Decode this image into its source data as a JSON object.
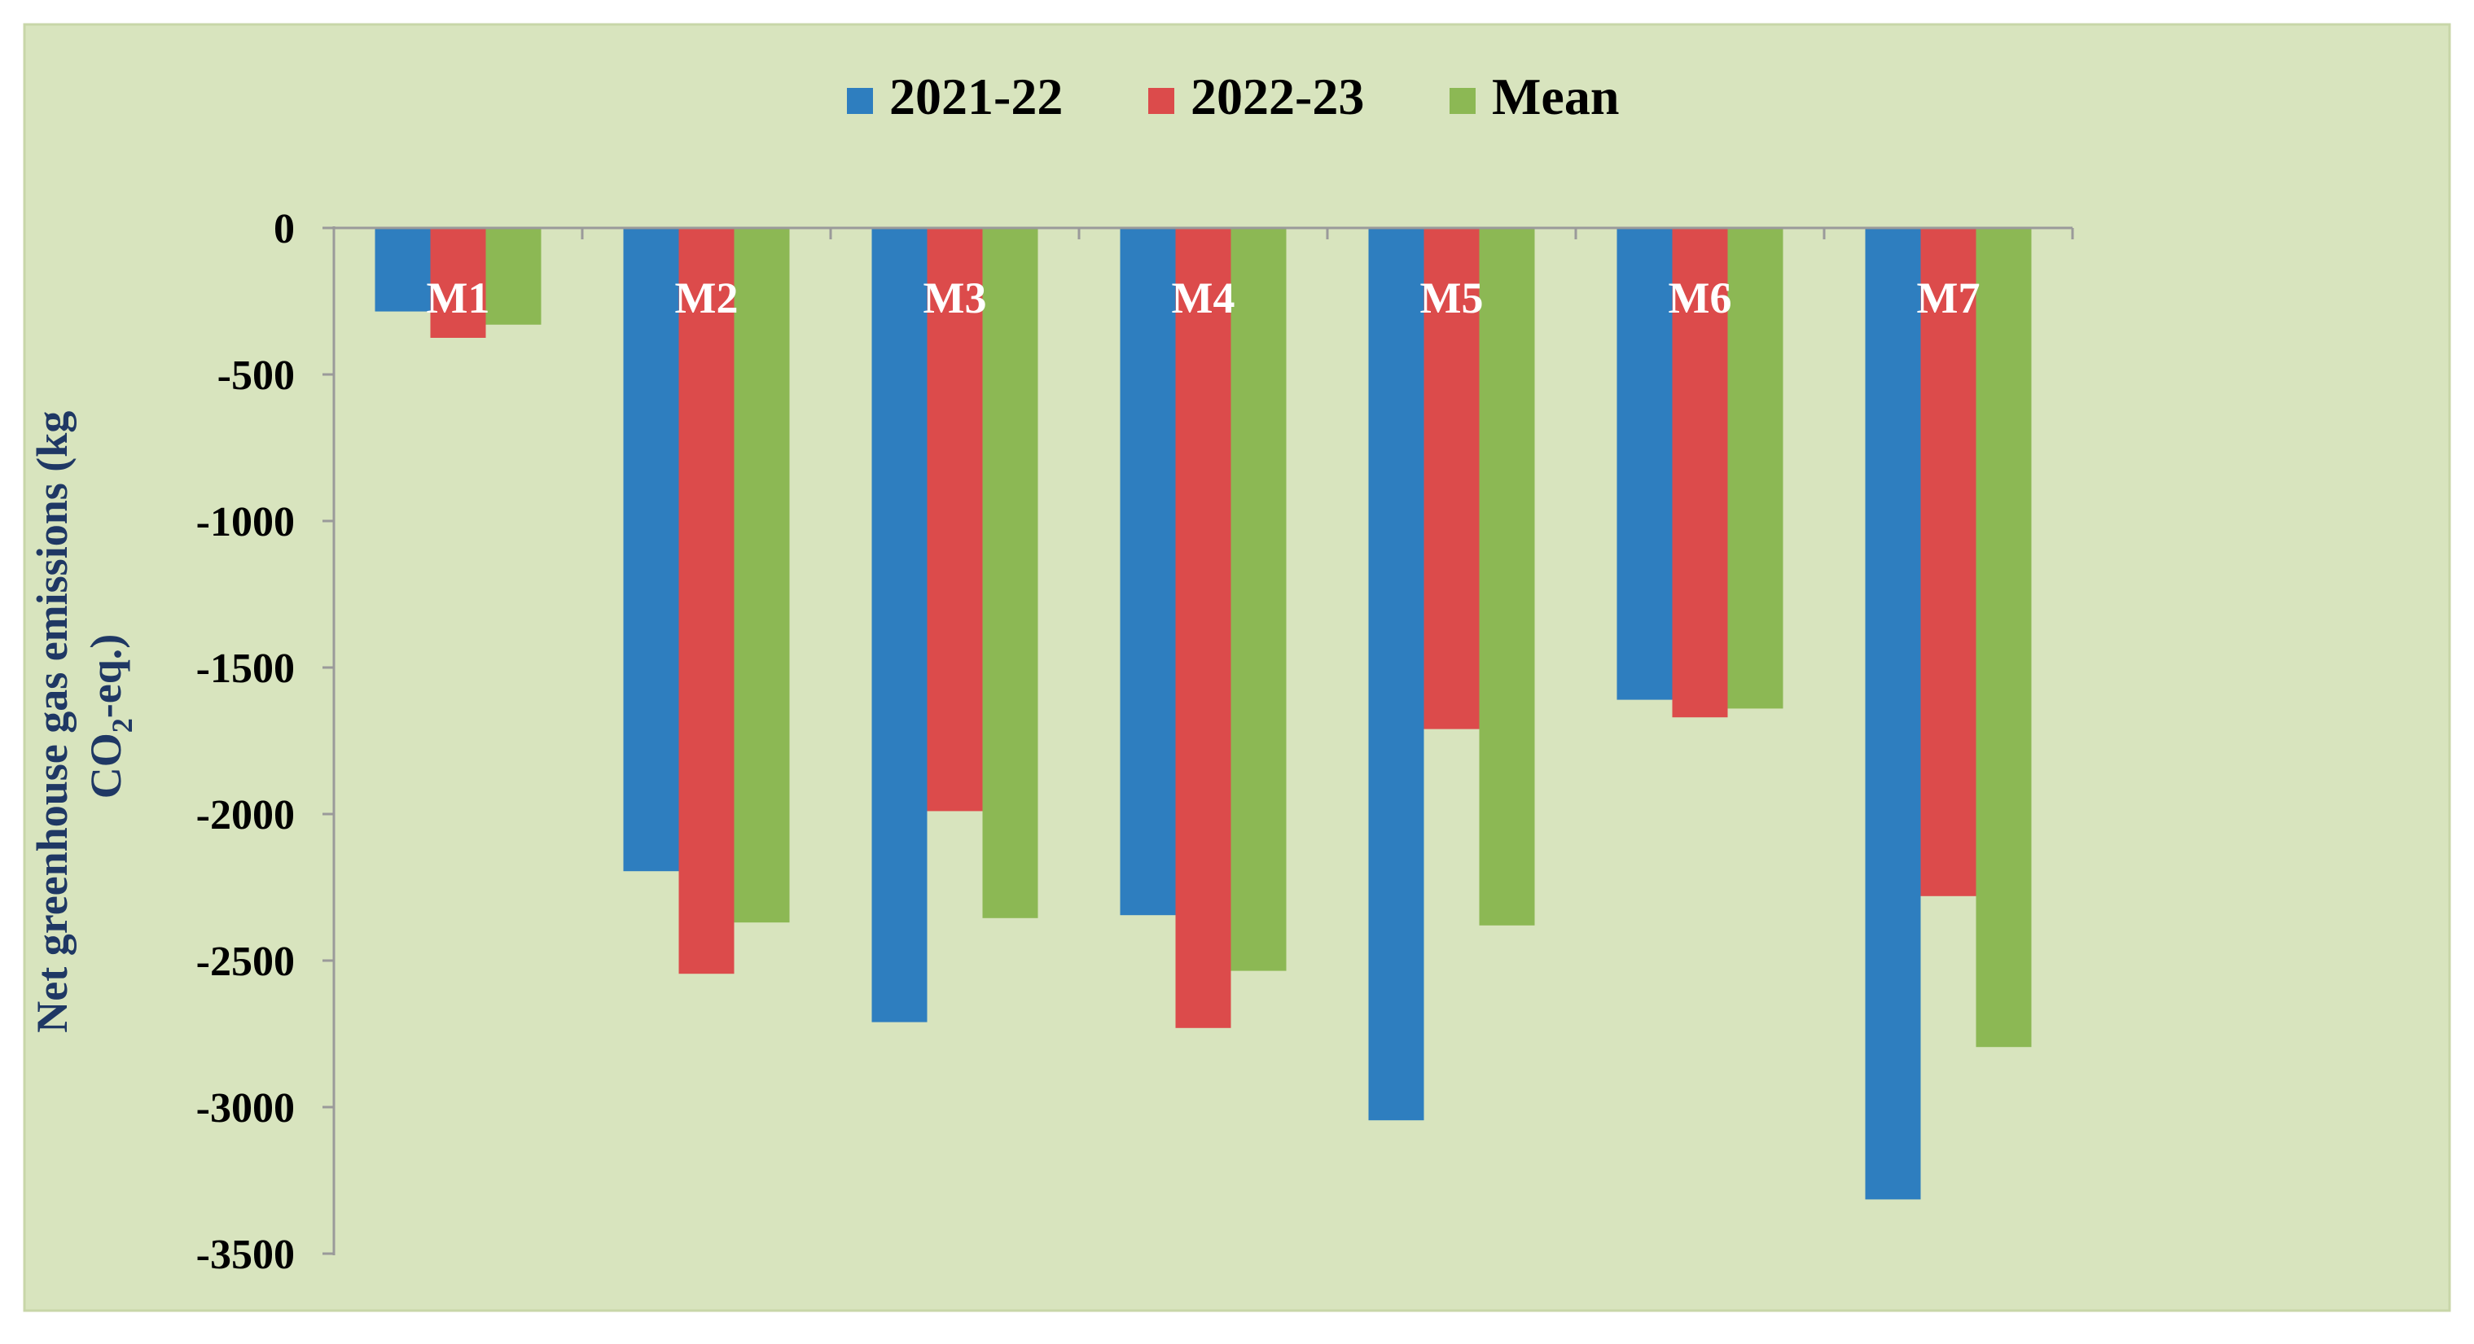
{
  "chart_data": {
    "type": "bar",
    "title": "",
    "xlabel": "",
    "ylabel_line1": "Net greenhouse gas emissions (kg",
    "ylabel_line2_pre": "CO",
    "ylabel_line2_sub": "2",
    "ylabel_line2_post": "-eq.)",
    "categories": [
      "M1",
      "M2",
      "M3",
      "M4",
      "M5",
      "M6",
      "M7"
    ],
    "series": [
      {
        "name": "2021-22",
        "color": "#2E7EBF",
        "values": [
          -285,
          -2195,
          -2710,
          -2345,
          -3045,
          -1610,
          -3315
        ]
      },
      {
        "name": "2022-23",
        "color": "#DC4B4B",
        "values": [
          -375,
          -2545,
          -1990,
          -2730,
          -1710,
          -1670,
          -2280
        ]
      },
      {
        "name": "Mean",
        "color": "#8CB854",
        "values": [
          -330,
          -2370,
          -2355,
          -2535,
          -2380,
          -1640,
          -2795
        ]
      }
    ],
    "ylim": [
      -3500,
      0
    ],
    "yticks": [
      "0",
      "-500",
      "-1000",
      "-1500",
      "-2000",
      "-2500",
      "-3000",
      "-3500"
    ],
    "ytick_values": [
      0,
      -500,
      -1000,
      -1500,
      -2000,
      -2500,
      -3000,
      -3500
    ],
    "legend_position": "top-center",
    "grid": false,
    "colors": {
      "background": "#D8E4BE",
      "border": "#C8D6A8",
      "axis": "#9A9A9A",
      "tick_text": "#000000",
      "ylabel_text": "#1F3864",
      "category_label": "#FFFFFF"
    }
  }
}
